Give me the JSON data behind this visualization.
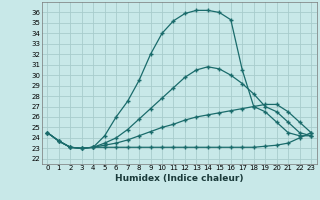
{
  "xlabel": "Humidex (Indice chaleur)",
  "bg_color": "#c8e8e8",
  "grid_color": "#a8cccc",
  "line_color": "#1a6b6b",
  "xlim": [
    -0.5,
    23.5
  ],
  "ylim": [
    21.5,
    37.0
  ],
  "xticks": [
    0,
    1,
    2,
    3,
    4,
    5,
    6,
    7,
    8,
    9,
    10,
    11,
    12,
    13,
    14,
    15,
    16,
    17,
    18,
    19,
    20,
    21,
    22,
    23
  ],
  "yticks": [
    22,
    23,
    24,
    25,
    26,
    27,
    28,
    29,
    30,
    31,
    32,
    33,
    34,
    35,
    36
  ],
  "line1_x": [
    0,
    1,
    2,
    3,
    4,
    5,
    6,
    7,
    8,
    9,
    10,
    11,
    12,
    13,
    14,
    15,
    16,
    17,
    18,
    19,
    20,
    21,
    22,
    23
  ],
  "line1_y": [
    24.5,
    23.7,
    23.1,
    23.0,
    23.1,
    24.2,
    26.0,
    27.5,
    29.5,
    32.0,
    34.0,
    35.2,
    35.9,
    36.2,
    36.2,
    36.0,
    35.3,
    30.5,
    27.0,
    26.5,
    25.5,
    24.5,
    24.2,
    24.2
  ],
  "line2_x": [
    0,
    1,
    2,
    3,
    4,
    5,
    6,
    7,
    8,
    9,
    10,
    11,
    12,
    13,
    14,
    15,
    16,
    17,
    18,
    19,
    20,
    21,
    22,
    23
  ],
  "line2_y": [
    24.5,
    23.7,
    23.1,
    23.0,
    23.1,
    23.5,
    24.0,
    24.8,
    25.8,
    26.8,
    27.8,
    28.8,
    29.8,
    30.5,
    30.8,
    30.6,
    30.0,
    29.2,
    28.2,
    27.0,
    26.5,
    25.5,
    24.5,
    24.2
  ],
  "line3_x": [
    0,
    1,
    2,
    3,
    4,
    5,
    6,
    7,
    8,
    9,
    10,
    11,
    12,
    13,
    14,
    15,
    16,
    17,
    18,
    19,
    20,
    21,
    22,
    23
  ],
  "line3_y": [
    24.5,
    23.7,
    23.1,
    23.0,
    23.1,
    23.3,
    23.5,
    23.8,
    24.2,
    24.6,
    25.0,
    25.3,
    25.7,
    26.0,
    26.2,
    26.4,
    26.6,
    26.8,
    27.0,
    27.2,
    27.2,
    26.5,
    25.5,
    24.5
  ],
  "line4_x": [
    0,
    1,
    2,
    3,
    4,
    5,
    6,
    7,
    8,
    9,
    10,
    11,
    12,
    13,
    14,
    15,
    16,
    17,
    18,
    19,
    20,
    21,
    22,
    23
  ],
  "line4_y": [
    24.5,
    23.7,
    23.1,
    23.0,
    23.1,
    23.1,
    23.1,
    23.1,
    23.1,
    23.1,
    23.1,
    23.1,
    23.1,
    23.1,
    23.1,
    23.1,
    23.1,
    23.1,
    23.1,
    23.2,
    23.3,
    23.5,
    24.0,
    24.5
  ]
}
